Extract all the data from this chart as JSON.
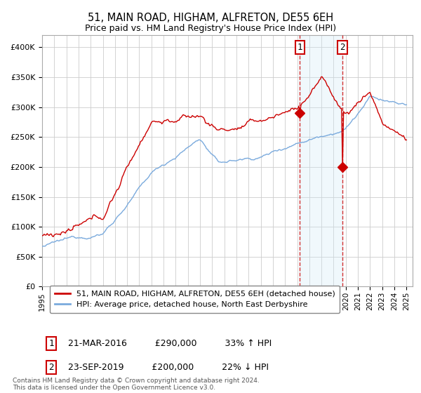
{
  "title": "51, MAIN ROAD, HIGHAM, ALFRETON, DE55 6EH",
  "subtitle": "Price paid vs. HM Land Registry's House Price Index (HPI)",
  "ylim": [
    0,
    420000
  ],
  "yticks": [
    0,
    50000,
    100000,
    150000,
    200000,
    250000,
    300000,
    350000,
    400000
  ],
  "ytick_labels": [
    "£0",
    "£50K",
    "£100K",
    "£150K",
    "£200K",
    "£250K",
    "£300K",
    "£350K",
    "£400K"
  ],
  "hpi_color": "#7aaadd",
  "price_color": "#cc0000",
  "vline_color": "#cc0000",
  "shade_color": "#d0e8f8",
  "point1_year": 2016.21,
  "point1_value": 290000,
  "point2_year": 2019.72,
  "point2_value": 200000,
  "legend_line1": "51, MAIN ROAD, HIGHAM, ALFRETON, DE55 6EH (detached house)",
  "legend_line2": "HPI: Average price, detached house, North East Derbyshire",
  "table_row1_num": "1",
  "table_row1_date": "21-MAR-2016",
  "table_row1_price": "£290,000",
  "table_row1_hpi": "33% ↑ HPI",
  "table_row2_num": "2",
  "table_row2_date": "23-SEP-2019",
  "table_row2_price": "£200,000",
  "table_row2_hpi": "22% ↓ HPI",
  "footnote": "Contains HM Land Registry data © Crown copyright and database right 2024.\nThis data is licensed under the Open Government Licence v3.0.",
  "xtick_years": [
    1995,
    1996,
    1997,
    1998,
    1999,
    2000,
    2001,
    2002,
    2003,
    2004,
    2005,
    2006,
    2007,
    2008,
    2009,
    2010,
    2011,
    2012,
    2013,
    2014,
    2015,
    2016,
    2017,
    2018,
    2019,
    2020,
    2021,
    2022,
    2023,
    2024,
    2025
  ],
  "bg_color": "#ffffff",
  "grid_color": "#cccccc"
}
